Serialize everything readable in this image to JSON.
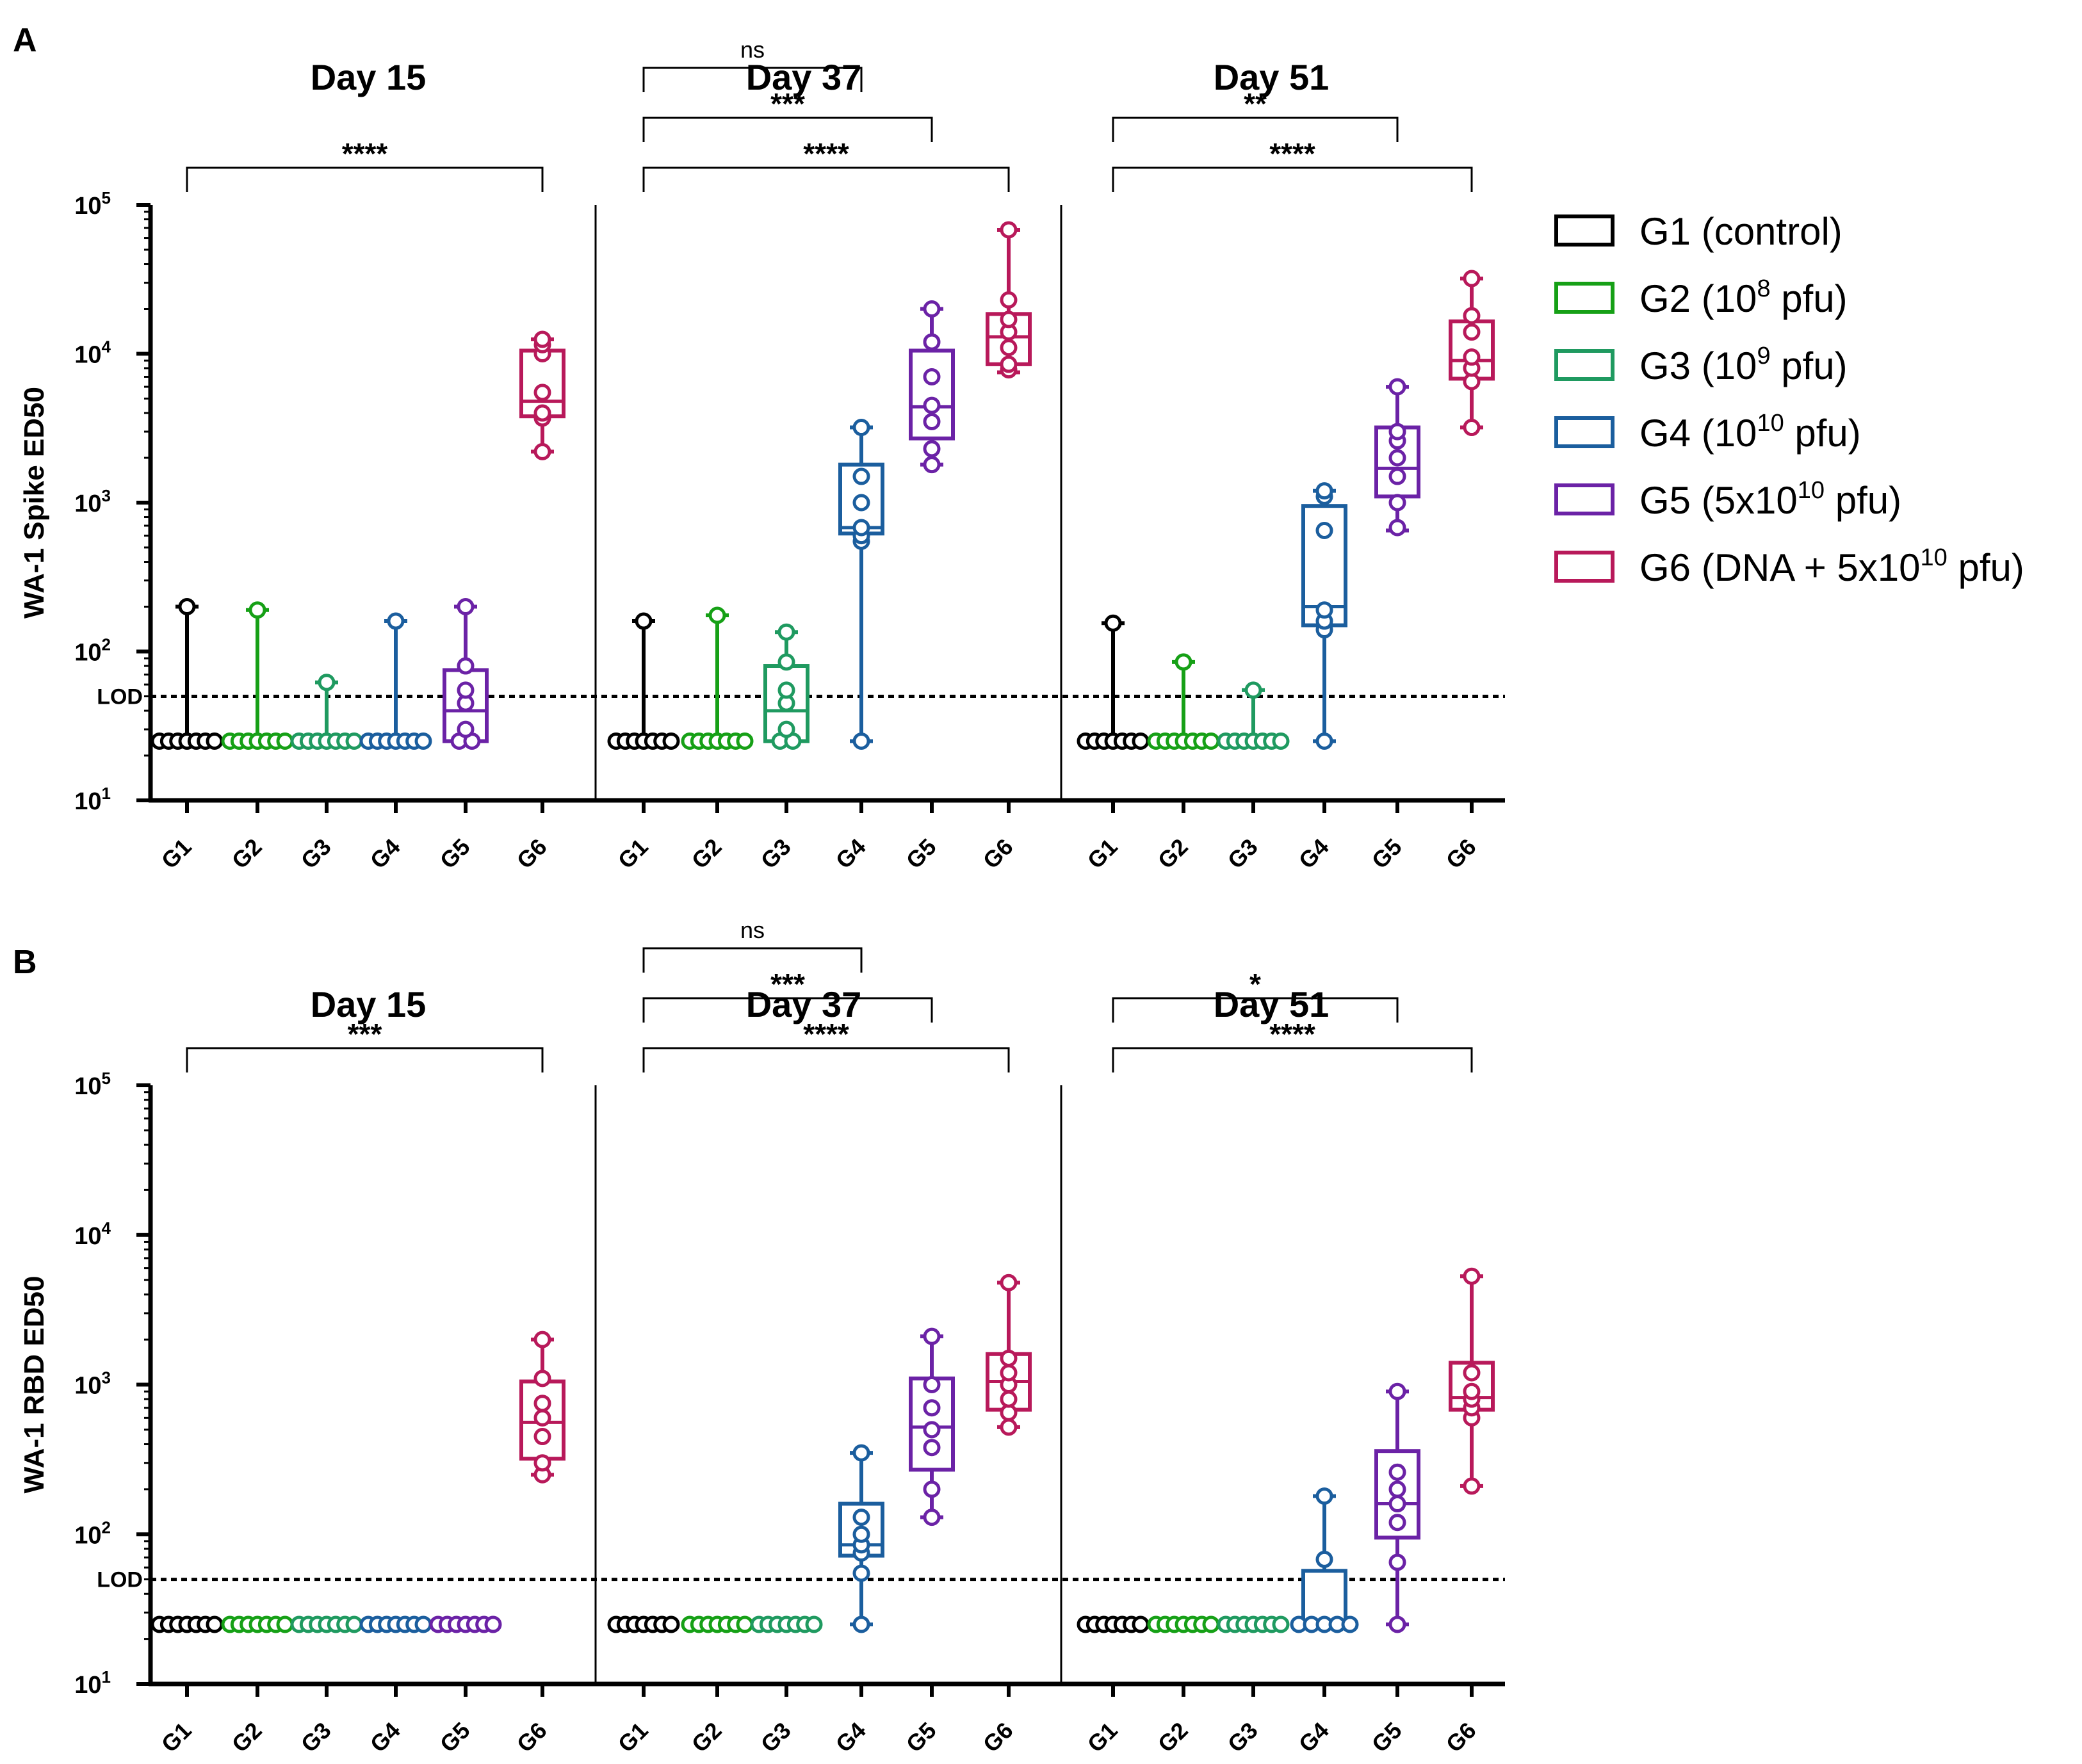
{
  "colors": {
    "G1": "#000000",
    "G2": "#16a016",
    "G3": "#1f9a60",
    "G4": "#1b5e9e",
    "G5": "#6b22a6",
    "G6": "#b8195a"
  },
  "legend": [
    {
      "group": "G1",
      "pre": "G1 (control)",
      "sup": "",
      "post": ""
    },
    {
      "group": "G2",
      "pre": "G2 (10",
      "sup": "8",
      "post": " pfu)"
    },
    {
      "group": "G3",
      "pre": "G3 (10",
      "sup": "9",
      "post": " pfu)"
    },
    {
      "group": "G4",
      "pre": "G4 (10",
      "sup": "10",
      "post": " pfu)"
    },
    {
      "group": "G5",
      "pre": "G5 (5x10",
      "sup": "10",
      "post": " pfu)"
    },
    {
      "group": "G6",
      "pre": "G6 (DNA + 5x10",
      "sup": "10",
      "post": " pfu)"
    }
  ],
  "chart_data": [
    {
      "panel_label": "A",
      "type": "box",
      "ylabel": "WA-1 Spike ED50",
      "yscale": "log10",
      "ylim": [
        10,
        100000
      ],
      "yticks": [
        {
          "base": "10",
          "exp": "1"
        },
        {
          "base": "10",
          "exp": "2"
        },
        {
          "base": "10",
          "exp": "3"
        },
        {
          "base": "10",
          "exp": "4"
        },
        {
          "base": "10",
          "exp": "5"
        }
      ],
      "lod": {
        "label": "LOD",
        "value": 50
      },
      "categories": [
        "G1",
        "G2",
        "G3",
        "G4",
        "G5",
        "G6"
      ],
      "days": [
        {
          "title": "Day 15",
          "boxes": [
            {
              "group": "G1",
              "min": 25,
              "q1": 25,
              "median": 25,
              "q3": 25,
              "max": 200,
              "points": [
                25,
                25,
                25,
                25,
                25,
                25,
                25,
                200
              ]
            },
            {
              "group": "G2",
              "min": 25,
              "q1": 25,
              "median": 25,
              "q3": 25,
              "max": 190,
              "points": [
                25,
                25,
                25,
                25,
                25,
                25,
                25,
                190
              ]
            },
            {
              "group": "G3",
              "min": 25,
              "q1": 25,
              "median": 25,
              "q3": 25,
              "max": 62,
              "points": [
                25,
                25,
                25,
                25,
                25,
                25,
                25,
                62
              ]
            },
            {
              "group": "G4",
              "min": 25,
              "q1": 25,
              "median": 25,
              "q3": 25,
              "max": 160,
              "points": [
                25,
                25,
                25,
                25,
                25,
                25,
                25,
                160
              ]
            },
            {
              "group": "G5",
              "min": 25,
              "q1": 25,
              "median": 40,
              "q3": 75,
              "max": 200,
              "points": [
                25,
                25,
                30,
                45,
                55,
                80,
                200
              ]
            },
            {
              "group": "G6",
              "min": 2200,
              "q1": 3800,
              "median": 4800,
              "q3": 10500,
              "max": 12500,
              "points": [
                2200,
                3700,
                4000,
                5500,
                10000,
                11500,
                12500
              ]
            }
          ],
          "comparisons": [
            {
              "from": "G1",
              "to": "G6",
              "label": "****"
            }
          ]
        },
        {
          "title": "Day 37",
          "boxes": [
            {
              "group": "G1",
              "min": 25,
              "q1": 25,
              "median": 25,
              "q3": 25,
              "max": 160,
              "points": [
                25,
                25,
                25,
                25,
                25,
                25,
                25,
                160
              ]
            },
            {
              "group": "G2",
              "min": 25,
              "q1": 25,
              "median": 25,
              "q3": 25,
              "max": 175,
              "points": [
                25,
                25,
                25,
                25,
                25,
                25,
                25,
                175
              ]
            },
            {
              "group": "G3",
              "min": 25,
              "q1": 25,
              "median": 40,
              "q3": 80,
              "max": 135,
              "points": [
                25,
                25,
                30,
                45,
                55,
                85,
                135
              ]
            },
            {
              "group": "G4",
              "min": 25,
              "q1": 620,
              "median": 680,
              "q3": 1800,
              "max": 3200,
              "points": [
                25,
                550,
                600,
                680,
                1000,
                1500,
                3200
              ]
            },
            {
              "group": "G5",
              "min": 1800,
              "q1": 2700,
              "median": 4400,
              "q3": 10500,
              "max": 20000,
              "points": [
                1800,
                2300,
                3500,
                4500,
                7000,
                12000,
                20000
              ]
            },
            {
              "group": "G6",
              "min": 7500,
              "q1": 8500,
              "median": 13000,
              "q3": 18500,
              "max": 68000,
              "points": [
                7800,
                8500,
                11000,
                14000,
                17000,
                23000,
                68000
              ]
            }
          ],
          "comparisons": [
            {
              "from": "G1",
              "to": "G4",
              "label": "ns"
            },
            {
              "from": "G1",
              "to": "G5",
              "label": "***"
            },
            {
              "from": "G1",
              "to": "G6",
              "label": "****"
            }
          ]
        },
        {
          "title": "Day 51",
          "boxes": [
            {
              "group": "G1",
              "min": 25,
              "q1": 25,
              "median": 25,
              "q3": 25,
              "max": 155,
              "points": [
                25,
                25,
                25,
                25,
                25,
                25,
                25,
                155
              ]
            },
            {
              "group": "G2",
              "min": 25,
              "q1": 25,
              "median": 25,
              "q3": 25,
              "max": 85,
              "points": [
                25,
                25,
                25,
                25,
                25,
                25,
                25,
                85
              ]
            },
            {
              "group": "G3",
              "min": 25,
              "q1": 25,
              "median": 25,
              "q3": 25,
              "max": 55,
              "points": [
                25,
                25,
                25,
                25,
                25,
                25,
                25,
                55
              ]
            },
            {
              "group": "G4",
              "min": 25,
              "q1": 150,
              "median": 200,
              "q3": 950,
              "max": 1200,
              "points": [
                25,
                140,
                160,
                190,
                650,
                1100,
                1200
              ]
            },
            {
              "group": "G5",
              "min": 650,
              "q1": 1100,
              "median": 1700,
              "q3": 3200,
              "max": 6000,
              "points": [
                680,
                1000,
                1500,
                2000,
                2600,
                3000,
                6000
              ]
            },
            {
              "group": "G6",
              "min": 3200,
              "q1": 6800,
              "median": 9000,
              "q3": 16500,
              "max": 32000,
              "points": [
                3200,
                6500,
                8000,
                9500,
                14000,
                18000,
                32000
              ]
            }
          ],
          "comparisons": [
            {
              "from": "G1",
              "to": "G5",
              "label": "**"
            },
            {
              "from": "G1",
              "to": "G6",
              "label": "****"
            }
          ]
        }
      ]
    },
    {
      "panel_label": "B",
      "type": "box",
      "ylabel": "WA-1 RBD ED50",
      "yscale": "log10",
      "ylim": [
        10,
        100000
      ],
      "yticks": [
        {
          "base": "10",
          "exp": "1"
        },
        {
          "base": "10",
          "exp": "2"
        },
        {
          "base": "10",
          "exp": "3"
        },
        {
          "base": "10",
          "exp": "4"
        },
        {
          "base": "10",
          "exp": "5"
        }
      ],
      "lod": {
        "label": "LOD",
        "value": 50
      },
      "categories": [
        "G1",
        "G2",
        "G3",
        "G4",
        "G5",
        "G6"
      ],
      "days": [
        {
          "title": "Day 15",
          "boxes": [
            {
              "group": "G1",
              "min": 25,
              "q1": 25,
              "median": 25,
              "q3": 25,
              "max": 25,
              "points": [
                25,
                25,
                25,
                25,
                25,
                25,
                25
              ]
            },
            {
              "group": "G2",
              "min": 25,
              "q1": 25,
              "median": 25,
              "q3": 25,
              "max": 25,
              "points": [
                25,
                25,
                25,
                25,
                25,
                25,
                25
              ]
            },
            {
              "group": "G3",
              "min": 25,
              "q1": 25,
              "median": 25,
              "q3": 25,
              "max": 25,
              "points": [
                25,
                25,
                25,
                25,
                25,
                25,
                25
              ]
            },
            {
              "group": "G4",
              "min": 25,
              "q1": 25,
              "median": 25,
              "q3": 25,
              "max": 25,
              "points": [
                25,
                25,
                25,
                25,
                25,
                25,
                25
              ]
            },
            {
              "group": "G5",
              "min": 25,
              "q1": 25,
              "median": 25,
              "q3": 25,
              "max": 25,
              "points": [
                25,
                25,
                25,
                25,
                25,
                25,
                25
              ]
            },
            {
              "group": "G6",
              "min": 250,
              "q1": 320,
              "median": 560,
              "q3": 1050,
              "max": 2000,
              "points": [
                250,
                300,
                450,
                600,
                750,
                1100,
                2000
              ]
            }
          ],
          "comparisons": [
            {
              "from": "G1",
              "to": "G6",
              "label": "***"
            }
          ]
        },
        {
          "title": "Day 37",
          "boxes": [
            {
              "group": "G1",
              "min": 25,
              "q1": 25,
              "median": 25,
              "q3": 25,
              "max": 25,
              "points": [
                25,
                25,
                25,
                25,
                25,
                25,
                25
              ]
            },
            {
              "group": "G2",
              "min": 25,
              "q1": 25,
              "median": 25,
              "q3": 25,
              "max": 25,
              "points": [
                25,
                25,
                25,
                25,
                25,
                25,
                25
              ]
            },
            {
              "group": "G3",
              "min": 25,
              "q1": 25,
              "median": 25,
              "q3": 25,
              "max": 25,
              "points": [
                25,
                25,
                25,
                25,
                25,
                25,
                25
              ]
            },
            {
              "group": "G4",
              "min": 25,
              "q1": 72,
              "median": 85,
              "q3": 160,
              "max": 350,
              "points": [
                25,
                55,
                75,
                85,
                100,
                130,
                350
              ]
            },
            {
              "group": "G5",
              "min": 130,
              "q1": 270,
              "median": 520,
              "q3": 1100,
              "max": 2100,
              "points": [
                130,
                200,
                380,
                500,
                700,
                1000,
                2100
              ]
            },
            {
              "group": "G6",
              "min": 520,
              "q1": 680,
              "median": 1050,
              "q3": 1600,
              "max": 4800,
              "points": [
                520,
                650,
                800,
                1000,
                1200,
                1500,
                4800
              ]
            }
          ],
          "comparisons": [
            {
              "from": "G1",
              "to": "G4",
              "label": "ns"
            },
            {
              "from": "G1",
              "to": "G5",
              "label": "***"
            },
            {
              "from": "G1",
              "to": "G6",
              "label": "****"
            }
          ]
        },
        {
          "title": "Day 51",
          "boxes": [
            {
              "group": "G1",
              "min": 25,
              "q1": 25,
              "median": 25,
              "q3": 25,
              "max": 25,
              "points": [
                25,
                25,
                25,
                25,
                25,
                25,
                25
              ]
            },
            {
              "group": "G2",
              "min": 25,
              "q1": 25,
              "median": 25,
              "q3": 25,
              "max": 25,
              "points": [
                25,
                25,
                25,
                25,
                25,
                25,
                25
              ]
            },
            {
              "group": "G3",
              "min": 25,
              "q1": 25,
              "median": 25,
              "q3": 25,
              "max": 25,
              "points": [
                25,
                25,
                25,
                25,
                25,
                25,
                25
              ]
            },
            {
              "group": "G4",
              "min": 25,
              "q1": 25,
              "median": 25,
              "q3": 57,
              "max": 180,
              "points": [
                25,
                25,
                25,
                25,
                25,
                68,
                180
              ]
            },
            {
              "group": "G5",
              "min": 25,
              "q1": 95,
              "median": 160,
              "q3": 360,
              "max": 900,
              "points": [
                25,
                65,
                120,
                160,
                200,
                260,
                900
              ]
            },
            {
              "group": "G6",
              "min": 210,
              "q1": 680,
              "median": 820,
              "q3": 1400,
              "max": 5300,
              "points": [
                210,
                600,
                700,
                800,
                900,
                1200,
                5300
              ]
            }
          ],
          "comparisons": [
            {
              "from": "G1",
              "to": "G5",
              "label": "*"
            },
            {
              "from": "G1",
              "to": "G6",
              "label": "****"
            }
          ]
        }
      ]
    }
  ]
}
